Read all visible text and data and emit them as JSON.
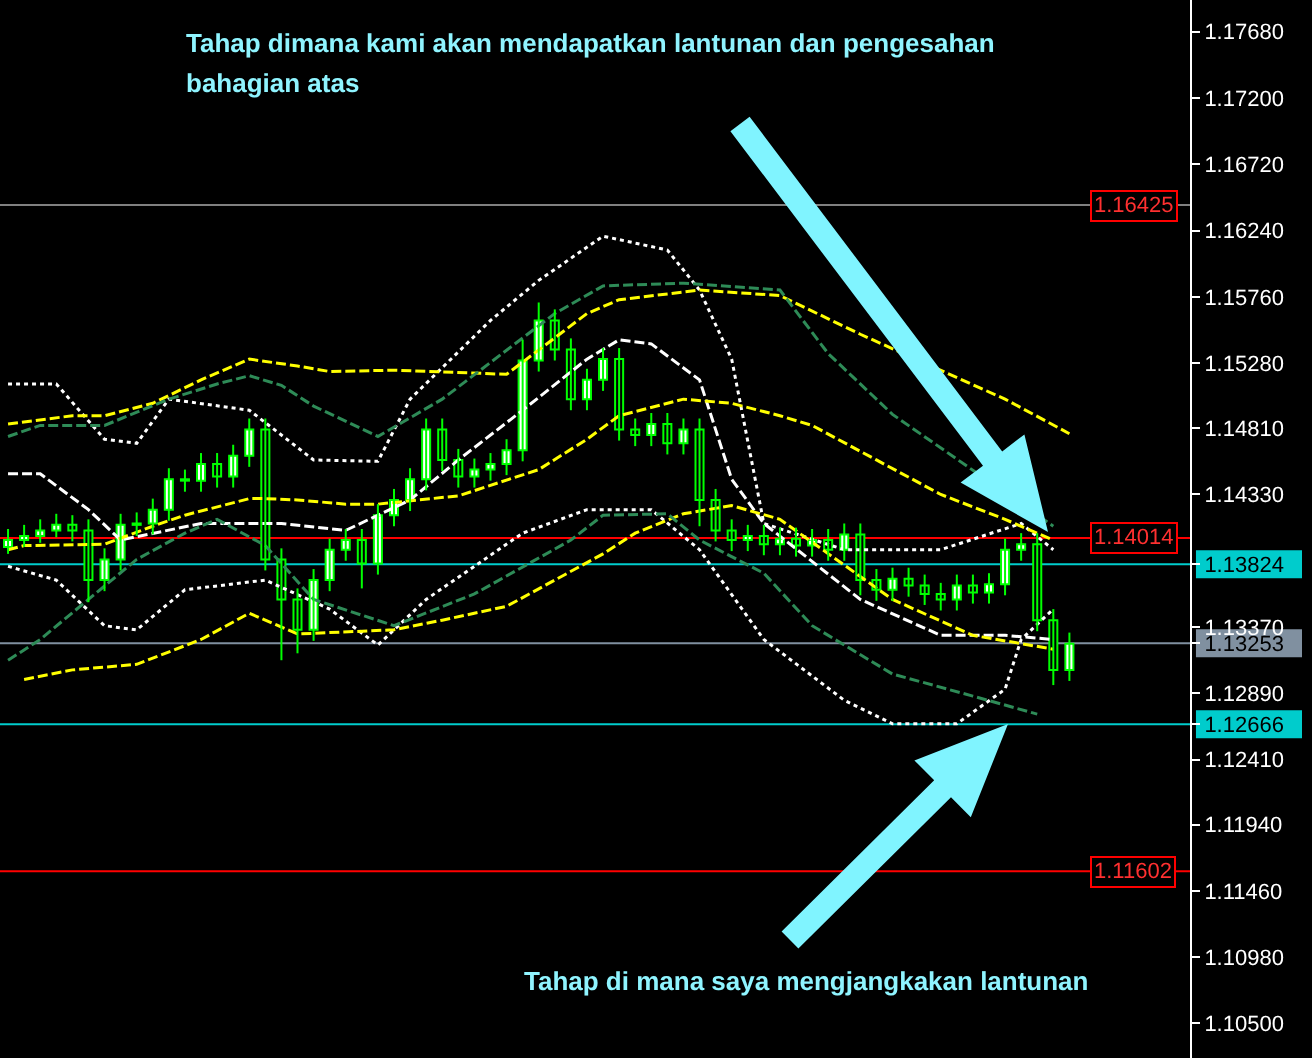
{
  "chart_data": {
    "type": "candlestick",
    "color": "#00ff00",
    "tick_labels": "y",
    "categories": [
      null,
      null,
      null,
      null,
      null,
      null,
      null,
      null,
      null,
      null,
      null,
      null,
      null,
      null,
      null,
      null,
      null,
      null,
      null,
      null,
      null,
      null,
      null,
      null,
      null,
      null,
      null,
      null,
      null,
      null,
      null,
      null,
      null,
      null,
      null,
      null,
      null,
      null,
      null,
      null,
      null,
      null,
      null,
      null,
      null,
      null,
      null,
      null,
      null,
      null,
      null,
      null,
      null,
      null,
      null,
      null,
      null,
      null,
      null,
      null,
      null,
      null,
      null,
      null,
      null,
      null,
      null,
      null,
      null,
      null,
      null,
      null,
      null,
      null
    ],
    "ohlc": [
      [
        1.1395,
        1.1408,
        1.139,
        1.14
      ],
      [
        1.14,
        1.1411,
        1.1395,
        1.1403
      ],
      [
        1.1403,
        1.1415,
        1.1398,
        1.1407
      ],
      [
        1.1407,
        1.1419,
        1.1402,
        1.1411
      ],
      [
        1.1411,
        1.1418,
        1.1399,
        1.1407
      ],
      [
        1.1407,
        1.1415,
        1.1355,
        1.1371
      ],
      [
        1.1371,
        1.1394,
        1.1363,
        1.1386
      ],
      [
        1.1386,
        1.1419,
        1.1378,
        1.1411
      ],
      [
        1.1411,
        1.142,
        1.1403,
        1.1412
      ],
      [
        1.1412,
        1.143,
        1.1404,
        1.1422
      ],
      [
        1.1422,
        1.1452,
        1.1414,
        1.1444
      ],
      [
        1.1444,
        1.1451,
        1.1435,
        1.1443
      ],
      [
        1.1443,
        1.1463,
        1.1435,
        1.1455
      ],
      [
        1.1455,
        1.1463,
        1.1438,
        1.1446
      ],
      [
        1.1446,
        1.1469,
        1.1438,
        1.1461
      ],
      [
        1.1461,
        1.1488,
        1.1453,
        1.148
      ],
      [
        1.148,
        1.1488,
        1.1378,
        1.1386
      ],
      [
        1.1386,
        1.1394,
        1.1313,
        1.1357
      ],
      [
        1.1357,
        1.1365,
        1.1318,
        1.1335
      ],
      [
        1.1335,
        1.1379,
        1.1327,
        1.1371
      ],
      [
        1.1371,
        1.1401,
        1.1363,
        1.1393
      ],
      [
        1.1393,
        1.1408,
        1.1385,
        1.14
      ],
      [
        1.14,
        1.1408,
        1.1365,
        1.1383
      ],
      [
        1.1383,
        1.1426,
        1.1375,
        1.1418
      ],
      [
        1.1418,
        1.1437,
        1.141,
        1.1429
      ],
      [
        1.1429,
        1.1452,
        1.1421,
        1.1444
      ],
      [
        1.1444,
        1.1488,
        1.1436,
        1.148
      ],
      [
        1.148,
        1.1488,
        1.145,
        1.1458
      ],
      [
        1.1458,
        1.1466,
        1.1438,
        1.1446
      ],
      [
        1.1446,
        1.1459,
        1.1438,
        1.1451
      ],
      [
        1.1451,
        1.1463,
        1.1443,
        1.1455
      ],
      [
        1.1455,
        1.1473,
        1.1447,
        1.1465
      ],
      [
        1.1465,
        1.1545,
        1.1457,
        1.153
      ],
      [
        1.153,
        1.1572,
        1.1522,
        1.1559
      ],
      [
        1.1559,
        1.1567,
        1.153,
        1.1538
      ],
      [
        1.1538,
        1.1546,
        1.1494,
        1.1502
      ],
      [
        1.1502,
        1.1524,
        1.1494,
        1.1516
      ],
      [
        1.1516,
        1.1539,
        1.1508,
        1.1531
      ],
      [
        1.1531,
        1.1539,
        1.1472,
        1.148
      ],
      [
        1.148,
        1.1488,
        1.1468,
        1.1476
      ],
      [
        1.1476,
        1.1492,
        1.1468,
        1.1484
      ],
      [
        1.1484,
        1.1492,
        1.1462,
        1.147
      ],
      [
        1.147,
        1.1488,
        1.1462,
        1.148
      ],
      [
        1.148,
        1.1488,
        1.141,
        1.1429
      ],
      [
        1.1429,
        1.1437,
        1.1399,
        1.1407
      ],
      [
        1.1407,
        1.1415,
        1.1392,
        1.14
      ],
      [
        1.14,
        1.1411,
        1.1392,
        1.1403
      ],
      [
        1.1403,
        1.1411,
        1.1389,
        1.1397
      ],
      [
        1.1397,
        1.1409,
        1.1389,
        1.1401
      ],
      [
        1.1401,
        1.1409,
        1.1388,
        1.1396
      ],
      [
        1.1396,
        1.1408,
        1.1388,
        1.14
      ],
      [
        1.14,
        1.1408,
        1.1385,
        1.1393
      ],
      [
        1.1393,
        1.1412,
        1.1385,
        1.1404
      ],
      [
        1.1404,
        1.1412,
        1.136,
        1.1371
      ],
      [
        1.1371,
        1.1379,
        1.1356,
        1.1364
      ],
      [
        1.1364,
        1.138,
        1.1356,
        1.1372
      ],
      [
        1.1372,
        1.138,
        1.1359,
        1.1367
      ],
      [
        1.1367,
        1.1375,
        1.1353,
        1.1361
      ],
      [
        1.1361,
        1.1369,
        1.1349,
        1.1357
      ],
      [
        1.1357,
        1.1375,
        1.1349,
        1.1367
      ],
      [
        1.1367,
        1.1375,
        1.1354,
        1.1362
      ],
      [
        1.1362,
        1.1376,
        1.1354,
        1.1368
      ],
      [
        1.1368,
        1.1401,
        1.136,
        1.1393
      ],
      [
        1.1393,
        1.1405,
        1.1385,
        1.1397
      ],
      [
        1.1397,
        1.1405,
        1.1334,
        1.1342
      ],
      [
        1.1342,
        1.135,
        1.1295,
        1.1306
      ],
      [
        1.1306,
        1.1333,
        1.1298,
        1.1325
      ],
      null,
      null,
      null,
      null,
      null,
      null,
      null
    ],
    "series": [
      {
        "type": "line",
        "color": "#ffffff",
        "line_style": "dotted",
        "values": [
          1.1513,
          null,
          null,
          1.1513,
          null,
          null,
          1.1473,
          null,
          1.147,
          null,
          1.1502,
          null,
          null,
          null,
          null,
          1.1494,
          null,
          null,
          null,
          1.1458,
          null,
          null,
          null,
          1.1457,
          null,
          1.1502,
          null,
          null,
          null,
          null,
          1.1559,
          null,
          null,
          1.1588,
          null,
          null,
          null,
          1.162,
          null,
          null,
          null,
          1.161,
          null,
          1.1581,
          null,
          1.1531,
          null,
          1.1412,
          null,
          null,
          null,
          null,
          1.1393,
          null,
          null,
          null,
          null,
          null,
          1.1393,
          null,
          null,
          null,
          null,
          1.1412,
          null,
          1.1393,
          null,
          null,
          null,
          null,
          null,
          null,
          null,
          null
        ]
      },
      {
        "type": "line",
        "color": "#ffffff",
        "line_style": "dotted",
        "values": [
          1.1381,
          null,
          null,
          1.1371,
          null,
          null,
          1.1338,
          null,
          1.1335,
          null,
          null,
          1.1364,
          null,
          null,
          null,
          null,
          1.1371,
          null,
          null,
          null,
          1.135,
          null,
          null,
          1.1324,
          null,
          null,
          1.1357,
          null,
          null,
          null,
          null,
          null,
          1.1405,
          null,
          null,
          null,
          1.1422,
          null,
          null,
          null,
          1.1422,
          null,
          null,
          1.1393,
          null,
          null,
          null,
          1.1328,
          null,
          null,
          null,
          null,
          1.1284,
          null,
          null,
          1.1267,
          null,
          null,
          null,
          1.1267,
          null,
          null,
          1.1292,
          1.1328,
          null,
          1.135,
          null,
          null,
          null,
          null,
          null,
          null,
          null,
          null
        ]
      },
      {
        "type": "line",
        "color": "#ffffff",
        "line_style": "dashed",
        "values": [
          1.1448,
          null,
          1.1448,
          null,
          null,
          1.1422,
          null,
          1.14,
          null,
          null,
          null,
          null,
          1.1412,
          null,
          null,
          null,
          null,
          1.1412,
          null,
          null,
          null,
          1.1407,
          null,
          null,
          null,
          1.1429,
          null,
          null,
          1.1458,
          null,
          null,
          null,
          1.1494,
          null,
          null,
          null,
          1.1531,
          null,
          1.1545,
          null,
          1.1542,
          null,
          null,
          1.1516,
          null,
          1.1444,
          null,
          1.1412,
          null,
          null,
          null,
          null,
          null,
          1.1357,
          null,
          null,
          null,
          null,
          1.1331,
          null,
          null,
          null,
          1.1331,
          null,
          null,
          1.1328,
          null,
          null,
          null,
          null,
          null,
          null,
          null,
          null
        ]
      },
      {
        "type": "line",
        "color": "#ffff00",
        "line_style": "dashed",
        "values": [
          1.1484,
          null,
          null,
          null,
          1.149,
          null,
          1.149,
          null,
          null,
          1.1499,
          null,
          null,
          1.1516,
          null,
          null,
          1.1531,
          null,
          null,
          1.1526,
          null,
          1.1522,
          null,
          null,
          null,
          1.1523,
          null,
          null,
          null,
          null,
          null,
          null,
          1.152,
          null,
          null,
          null,
          null,
          1.1564,
          null,
          1.1574,
          null,
          null,
          null,
          null,
          1.1581,
          null,
          null,
          null,
          null,
          1.1577,
          null,
          null,
          null,
          null,
          1.1549,
          null,
          null,
          null,
          null,
          null,
          null,
          null,
          null,
          1.1502,
          null,
          null,
          null,
          1.1477,
          null,
          null,
          null,
          null,
          null,
          null,
          null
        ]
      },
      {
        "type": "line",
        "color": "#ffff00",
        "line_style": "dashed",
        "values": [
          1.1393,
          1.1396,
          null,
          null,
          null,
          null,
          1.1397,
          null,
          null,
          1.141,
          null,
          1.1418,
          null,
          null,
          null,
          1.143,
          1.143,
          null,
          1.1429,
          null,
          null,
          1.1426,
          null,
          1.1426,
          null,
          null,
          null,
          null,
          1.1432,
          null,
          null,
          null,
          null,
          1.1451,
          null,
          null,
          1.1473,
          null,
          1.149,
          null,
          null,
          null,
          1.1502,
          null,
          null,
          1.1499,
          null,
          null,
          1.149,
          null,
          1.1483,
          null,
          null,
          null,
          1.1458,
          null,
          null,
          null,
          1.1433,
          null,
          null,
          null,
          1.1415,
          null,
          null,
          1.14,
          null,
          null,
          null,
          null,
          null,
          null,
          null,
          null
        ]
      },
      {
        "type": "line",
        "color": "#ffff00",
        "line_style": "dashed",
        "values": [
          null,
          1.1299,
          null,
          null,
          1.1306,
          null,
          null,
          null,
          1.131,
          null,
          null,
          null,
          1.1328,
          null,
          null,
          1.1347,
          null,
          null,
          1.1332,
          null,
          null,
          null,
          null,
          null,
          1.1335,
          null,
          null,
          1.1342,
          null,
          null,
          null,
          1.1352,
          null,
          null,
          1.1371,
          null,
          null,
          1.139,
          null,
          1.1405,
          null,
          null,
          1.1419,
          null,
          null,
          1.1425,
          null,
          null,
          1.1415,
          null,
          null,
          null,
          null,
          null,
          null,
          1.1357,
          null,
          null,
          null,
          null,
          1.1331,
          null,
          null,
          null,
          null,
          1.1321,
          null,
          null,
          null,
          null,
          null,
          null,
          null,
          null
        ]
      },
      {
        "type": "line",
        "color": "#2e8b57",
        "line_style": "dashed",
        "values": [
          1.1475,
          null,
          1.1483,
          null,
          null,
          null,
          1.1483,
          null,
          null,
          null,
          1.1502,
          null,
          null,
          1.1513,
          null,
          1.1519,
          null,
          1.1512,
          null,
          1.1497,
          null,
          null,
          null,
          1.1475,
          null,
          null,
          null,
          1.1502,
          null,
          null,
          null,
          null,
          null,
          null,
          1.1564,
          null,
          null,
          1.1584,
          null,
          null,
          null,
          null,
          1.1586,
          null,
          null,
          null,
          null,
          null,
          1.1581,
          null,
          null,
          1.1535,
          null,
          null,
          null,
          1.1491,
          null,
          null,
          null,
          null,
          null,
          null,
          null,
          null,
          null,
          1.141,
          null,
          null,
          null,
          null,
          null,
          null,
          null,
          null
        ]
      },
      {
        "type": "line",
        "color": "#2e8b57",
        "line_style": "dashed",
        "values": [
          1.1313,
          null,
          1.1328,
          null,
          null,
          1.1357,
          null,
          null,
          1.1386,
          null,
          null,
          1.1405,
          null,
          1.1415,
          null,
          null,
          1.1396,
          null,
          null,
          1.1357,
          null,
          null,
          null,
          null,
          1.1338,
          null,
          null,
          null,
          null,
          1.1361,
          null,
          null,
          null,
          null,
          null,
          1.14,
          null,
          1.1418,
          null,
          null,
          null,
          1.1419,
          null,
          1.14,
          null,
          null,
          null,
          1.1376,
          null,
          null,
          1.1338,
          null,
          null,
          null,
          null,
          1.1303,
          null,
          null,
          null,
          null,
          1.1287,
          null,
          null,
          null,
          1.1274,
          null,
          null,
          null,
          null,
          null,
          null,
          null,
          null,
          null
        ]
      }
    ],
    "ylim": [
      1.1025,
      1.1791
    ],
    "yticks": [
      {
        "value": 1.1768,
        "label": "1.17680"
      },
      {
        "value": 1.172,
        "label": "1.17200"
      },
      {
        "value": 1.1672,
        "label": "1.16720"
      },
      {
        "value": 1.1624,
        "label": "1.16240"
      },
      {
        "value": 1.1576,
        "label": "1.15760"
      },
      {
        "value": 1.1528,
        "label": "1.15280"
      },
      {
        "value": 1.1481,
        "label": "1.14810"
      },
      {
        "value": 1.1433,
        "label": "1.14330"
      },
      {
        "value": 1.13824,
        "label": "1.13824"
      },
      {
        "value": 1.1337,
        "label": "1.13370"
      },
      {
        "value": 1.13253,
        "label": "1.13253"
      },
      {
        "value": 1.1289,
        "label": "1.12890"
      },
      {
        "value": 1.12666,
        "label": "1.12666"
      },
      {
        "value": 1.1241,
        "label": "1.12410"
      },
      {
        "value": 1.1194,
        "label": "1.11940"
      },
      {
        "value": 1.1146,
        "label": "1.11460"
      },
      {
        "value": 1.1098,
        "label": "1.10980"
      },
      {
        "value": 1.105,
        "label": "1.10500"
      }
    ],
    "ref_lines": [
      {
        "axis": "y",
        "value": 1.16425,
        "label": "1.16425",
        "color": "#808080"
      },
      {
        "axis": "y",
        "value": 1.14014,
        "label": "1.14014",
        "color": "#ff0000"
      },
      {
        "axis": "y",
        "value": 1.13824,
        "label": null,
        "color": "#00cccc"
      },
      {
        "axis": "y",
        "value": 1.13253,
        "label": null,
        "color": "#8090a0"
      },
      {
        "axis": "y",
        "value": 1.12666,
        "label": null,
        "color": "#00cccc"
      },
      {
        "axis": "y",
        "value": 1.11602,
        "label": "1.11602",
        "color": "#ff0000"
      }
    ],
    "annotations": [
      "Tahap dimana kami akan mendapatkan lantunan dan pengesahan bahagian atas",
      "Tahap di mana saya mengjangkakan lantunan"
    ]
  }
}
